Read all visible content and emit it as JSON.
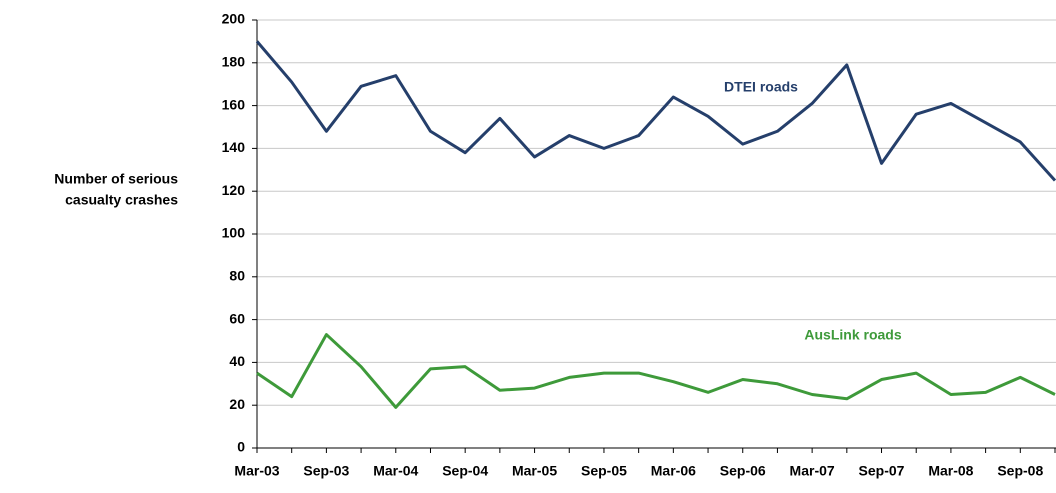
{
  "chart_data": {
    "type": "line",
    "ylabel": [
      "Number of serious",
      "casualty crashes"
    ],
    "categories": [
      "Mar-03",
      null,
      "Sep-03",
      null,
      "Mar-04",
      null,
      "Sep-04",
      null,
      "Mar-05",
      null,
      "Sep-05",
      null,
      "Mar-06",
      null,
      "Sep-06",
      null,
      "Mar-07",
      null,
      "Sep-07",
      null,
      "Mar-08",
      null,
      "Sep-08",
      null
    ],
    "series": [
      {
        "name": "DTEI roads",
        "color": "#253f6b",
        "values": [
          190,
          171,
          148,
          169,
          174,
          148,
          138,
          154,
          136,
          146,
          140,
          146,
          164,
          155,
          142,
          148,
          161,
          179,
          133,
          156,
          161,
          152,
          143,
          125
        ]
      },
      {
        "name": "AusLink roads",
        "color": "#3e9a3a",
        "values": [
          35,
          24,
          53,
          38,
          19,
          37,
          38,
          27,
          28,
          33,
          35,
          35,
          31,
          26,
          32,
          30,
          25,
          23,
          32,
          35,
          25,
          26,
          33,
          25
        ]
      }
    ],
    "ylim": [
      0,
      200
    ],
    "yticks": [
      0,
      20,
      40,
      60,
      80,
      100,
      120,
      140,
      160,
      180,
      200
    ],
    "grid": true
  }
}
